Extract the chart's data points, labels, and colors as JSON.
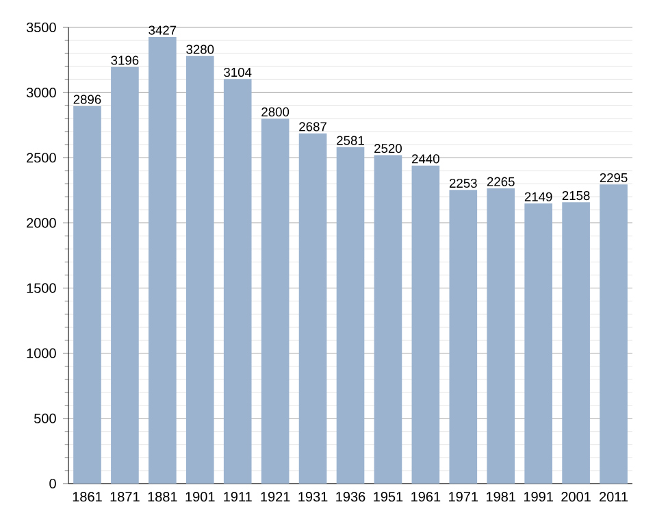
{
  "chart_data": {
    "type": "bar",
    "categories": [
      "1861",
      "1871",
      "1881",
      "1901",
      "1911",
      "1921",
      "1931",
      "1936",
      "1951",
      "1961",
      "1971",
      "1981",
      "1991",
      "2001",
      "2011"
    ],
    "values": [
      2896,
      3196,
      3427,
      3280,
      3104,
      2800,
      2687,
      2581,
      2520,
      2440,
      2253,
      2265,
      2149,
      2158,
      2295
    ],
    "color": "#9cb3cf",
    "data_labels": true,
    "grid": "y",
    "ylim": [
      0,
      3500
    ],
    "yticks": [
      0,
      500,
      1000,
      1500,
      2000,
      2500,
      3000,
      3500
    ]
  }
}
